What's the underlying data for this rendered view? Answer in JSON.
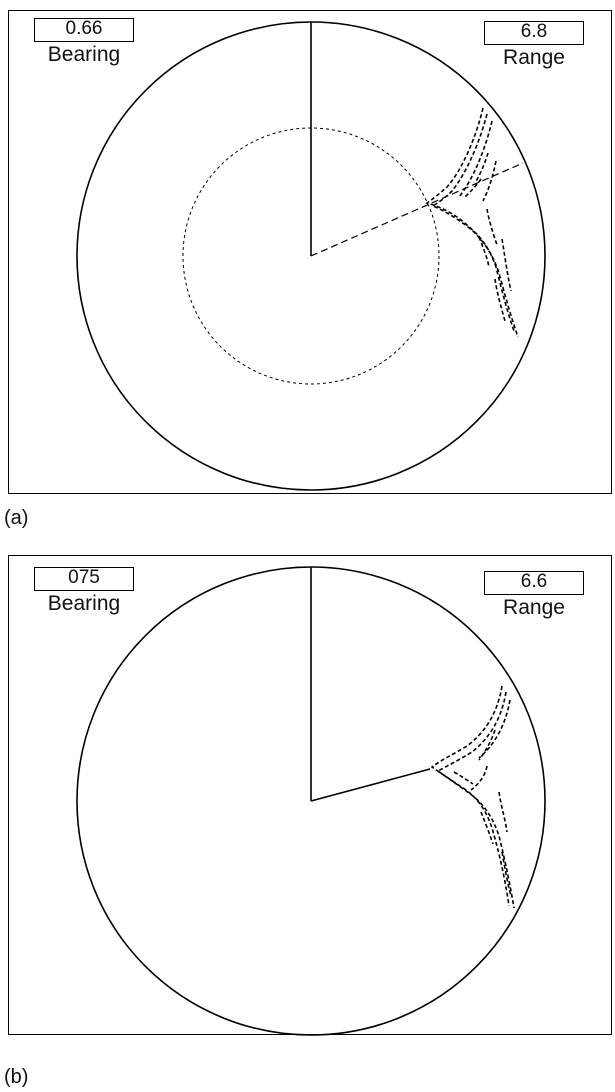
{
  "panels": [
    {
      "caption": "(a)",
      "bearing": {
        "value": "0.66",
        "label": "Bearing"
      },
      "range": {
        "value": "6.8",
        "label": "Range"
      },
      "ebl": "dashed",
      "vrm": "dashed-circle"
    },
    {
      "caption": "(b)",
      "bearing": {
        "value": "075",
        "label": "Bearing"
      },
      "range": {
        "value": "6.6",
        "label": "Range"
      },
      "ebl": "solid",
      "vrm": "none"
    }
  ]
}
